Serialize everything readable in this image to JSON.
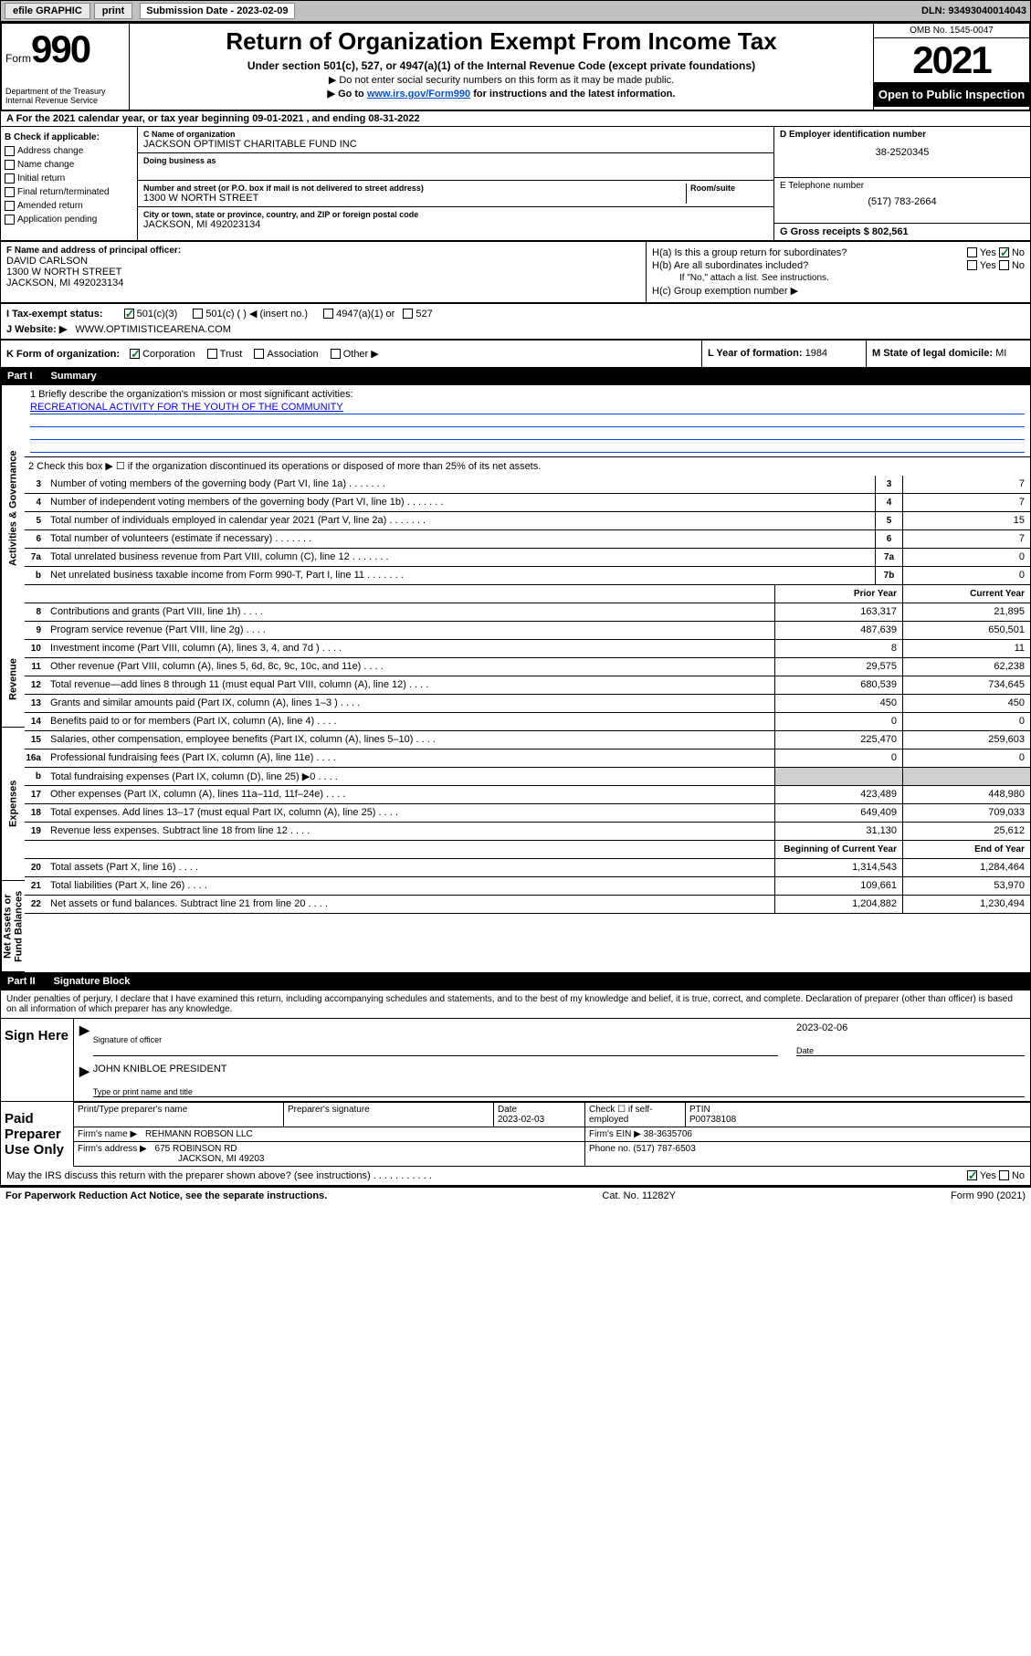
{
  "topbar": {
    "efile": "efile GRAPHIC",
    "print": "print",
    "subdate_label": "Submission Date - 2023-02-09",
    "dln": "DLN: 93493040014043"
  },
  "header": {
    "form_word": "Form",
    "form_num": "990",
    "dept": "Department of the Treasury\nInternal Revenue Service",
    "title": "Return of Organization Exempt From Income Tax",
    "subtitle": "Under section 501(c), 527, or 4947(a)(1) of the Internal Revenue Code (except private foundations)",
    "note1": "▶ Do not enter social security numbers on this form as it may be made public.",
    "note2_pre": "▶ Go to ",
    "note2_link": "www.irs.gov/Form990",
    "note2_post": " for instructions and the latest information.",
    "omb": "OMB No. 1545-0047",
    "year": "2021",
    "open_public": "Open to Public Inspection"
  },
  "row_a": "A For the 2021 calendar year, or tax year beginning 09-01-2021   , and ending 08-31-2022",
  "col_b": {
    "label": "B Check if applicable:",
    "items": [
      "Address change",
      "Name change",
      "Initial return",
      "Final return/terminated",
      "Amended return",
      "Application pending"
    ]
  },
  "col_c": {
    "name_label": "C Name of organization",
    "name": "JACKSON OPTIMIST CHARITABLE FUND INC",
    "dba_label": "Doing business as",
    "dba": "",
    "street_label": "Number and street (or P.O. box if mail is not delivered to street address)",
    "room_label": "Room/suite",
    "street": "1300 W NORTH STREET",
    "city_label": "City or town, state or province, country, and ZIP or foreign postal code",
    "city": "JACKSON, MI  492023134"
  },
  "col_de": {
    "d_label": "D Employer identification number",
    "d_val": "38-2520345",
    "e_label": "E Telephone number",
    "e_val": "(517) 783-2664",
    "g_label": "G Gross receipts $",
    "g_val": "802,561"
  },
  "row_f": {
    "label": "F Name and address of principal officer:",
    "name": "DAVID CARLSON",
    "street": "1300 W NORTH STREET",
    "city": "JACKSON, MI  492023134"
  },
  "row_h": {
    "ha_label": "H(a)  Is this a group return for subordinates?",
    "hb_label": "H(b)  Are all subordinates included?",
    "hb_note": "If \"No,\" attach a list. See instructions.",
    "hc_label": "H(c)  Group exemption number ▶"
  },
  "row_i": {
    "label": "I   Tax-exempt status:",
    "opts": [
      "501(c)(3)",
      "501(c) (  ) ◀ (insert no.)",
      "4947(a)(1) or",
      "527"
    ]
  },
  "row_j": {
    "label": "J   Website: ▶",
    "val": "WWW.OPTIMISTICEARENA.COM"
  },
  "row_k": {
    "label": "K Form of organization:",
    "opts": [
      "Corporation",
      "Trust",
      "Association",
      "Other ▶"
    ],
    "l_label": "L Year of formation:",
    "l_val": "1984",
    "m_label": "M State of legal domicile:",
    "m_val": "MI"
  },
  "part1": {
    "num": "Part I",
    "title": "Summary"
  },
  "mission": {
    "q1": "1  Briefly describe the organization's mission or most significant activities:",
    "text": "RECREATIONAL ACTIVITY FOR THE YOUTH OF THE COMMUNITY"
  },
  "q2": "2   Check this box ▶ ☐  if the organization discontinued its operations or disposed of more than 25% of its net assets.",
  "gov_rows": [
    {
      "n": "3",
      "t": "Number of voting members of the governing body (Part VI, line 1a)",
      "c": "3",
      "v": "7"
    },
    {
      "n": "4",
      "t": "Number of independent voting members of the governing body (Part VI, line 1b)",
      "c": "4",
      "v": "7"
    },
    {
      "n": "5",
      "t": "Total number of individuals employed in calendar year 2021 (Part V, line 2a)",
      "c": "5",
      "v": "15"
    },
    {
      "n": "6",
      "t": "Total number of volunteers (estimate if necessary)",
      "c": "6",
      "v": "7"
    },
    {
      "n": "7a",
      "t": "Total unrelated business revenue from Part VIII, column (C), line 12",
      "c": "7a",
      "v": "0"
    },
    {
      "n": "b",
      "t": "Net unrelated business taxable income from Form 990-T, Part I, line 11",
      "c": "7b",
      "v": "0"
    }
  ],
  "col_headers": {
    "prior": "Prior Year",
    "current": "Current Year",
    "boy": "Beginning of Current Year",
    "eoy": "End of Year"
  },
  "rev_rows": [
    {
      "n": "8",
      "t": "Contributions and grants (Part VIII, line 1h)",
      "p": "163,317",
      "v": "21,895"
    },
    {
      "n": "9",
      "t": "Program service revenue (Part VIII, line 2g)",
      "p": "487,639",
      "v": "650,501"
    },
    {
      "n": "10",
      "t": "Investment income (Part VIII, column (A), lines 3, 4, and 7d )",
      "p": "8",
      "v": "11"
    },
    {
      "n": "11",
      "t": "Other revenue (Part VIII, column (A), lines 5, 6d, 8c, 9c, 10c, and 11e)",
      "p": "29,575",
      "v": "62,238"
    },
    {
      "n": "12",
      "t": "Total revenue—add lines 8 through 11 (must equal Part VIII, column (A), line 12)",
      "p": "680,539",
      "v": "734,645"
    }
  ],
  "exp_rows": [
    {
      "n": "13",
      "t": "Grants and similar amounts paid (Part IX, column (A), lines 1–3 )",
      "p": "450",
      "v": "450"
    },
    {
      "n": "14",
      "t": "Benefits paid to or for members (Part IX, column (A), line 4)",
      "p": "0",
      "v": "0"
    },
    {
      "n": "15",
      "t": "Salaries, other compensation, employee benefits (Part IX, column (A), lines 5–10)",
      "p": "225,470",
      "v": "259,603"
    },
    {
      "n": "16a",
      "t": "Professional fundraising fees (Part IX, column (A), line 11e)",
      "p": "0",
      "v": "0"
    },
    {
      "n": "b",
      "t": "Total fundraising expenses (Part IX, column (D), line 25) ▶0",
      "p": "",
      "v": "",
      "shade": true
    },
    {
      "n": "17",
      "t": "Other expenses (Part IX, column (A), lines 11a–11d, 11f–24e)",
      "p": "423,489",
      "v": "448,980"
    },
    {
      "n": "18",
      "t": "Total expenses. Add lines 13–17 (must equal Part IX, column (A), line 25)",
      "p": "649,409",
      "v": "709,033"
    },
    {
      "n": "19",
      "t": "Revenue less expenses. Subtract line 18 from line 12",
      "p": "31,130",
      "v": "25,612"
    }
  ],
  "net_rows": [
    {
      "n": "20",
      "t": "Total assets (Part X, line 16)",
      "p": "1,314,543",
      "v": "1,284,464"
    },
    {
      "n": "21",
      "t": "Total liabilities (Part X, line 26)",
      "p": "109,661",
      "v": "53,970"
    },
    {
      "n": "22",
      "t": "Net assets or fund balances. Subtract line 21 from line 20",
      "p": "1,204,882",
      "v": "1,230,494"
    }
  ],
  "vtabs": {
    "ag": "Activities & Governance",
    "rev": "Revenue",
    "exp": "Expenses",
    "net": "Net Assets or\nFund Balances"
  },
  "part2": {
    "num": "Part II",
    "title": "Signature Block"
  },
  "sig": {
    "decl": "Under penalties of perjury, I declare that I have examined this return, including accompanying schedules and statements, and to the best of my knowledge and belief, it is true, correct, and complete. Declaration of preparer (other than officer) is based on all information of which preparer has any knowledge.",
    "sign_here": "Sign Here",
    "sig_officer": "Signature of officer",
    "sig_date": "2023-02-06",
    "date_label": "Date",
    "officer_name": "JOHN KNIBLOE PRESIDENT",
    "officer_label": "Type or print name and title",
    "paid": "Paid Preparer Use Only",
    "prep_name_label": "Print/Type preparer's name",
    "prep_sig_label": "Preparer's signature",
    "prep_date_label": "Date",
    "prep_date": "2023-02-03",
    "check_self": "Check ☐ if self-employed",
    "ptin_label": "PTIN",
    "ptin": "P00738108",
    "firm_name_label": "Firm's name    ▶",
    "firm_name": "REHMANN ROBSON LLC",
    "firm_ein_label": "Firm's EIN ▶",
    "firm_ein": "38-3635706",
    "firm_addr_label": "Firm's address ▶",
    "firm_addr1": "675 ROBINSON RD",
    "firm_addr2": "JACKSON, MI  49203",
    "phone_label": "Phone no.",
    "phone": "(517) 787-6503",
    "may_irs": "May the IRS discuss this return with the preparer shown above? (see instructions)"
  },
  "footer": {
    "left": "For Paperwork Reduction Act Notice, see the separate instructions.",
    "mid": "Cat. No. 11282Y",
    "right": "Form 990 (2021)"
  },
  "colors": {
    "link": "#0050d8",
    "check_green": "#0a7c2f"
  }
}
